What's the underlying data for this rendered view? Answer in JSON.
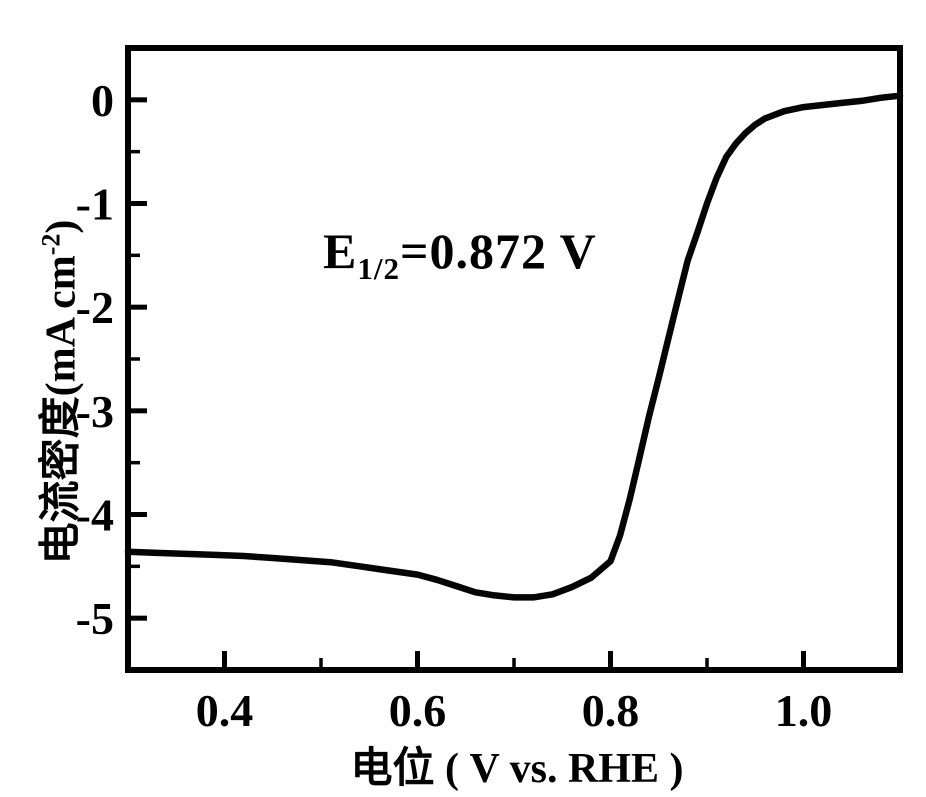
{
  "figure": {
    "background_color": "#ffffff",
    "line_color": "#050505",
    "axis_color": "#000000",
    "annotation": {
      "base": "E",
      "sub": "1/2",
      "rest": "=0.872 V"
    },
    "x_axis": {
      "label": "电位 ( V vs. RHE )",
      "tick_labels": [
        "0.4",
        "0.6",
        "0.8",
        "1.0"
      ],
      "tick_values": [
        0.4,
        0.6,
        0.8,
        1.0
      ],
      "minor_tick_values": [
        0.5,
        0.7,
        0.9
      ]
    },
    "y_axis": {
      "label_prefix": "电流密度(mA cm",
      "label_sup": "-2",
      "label_suffix": ")",
      "tick_labels": [
        "0",
        "-1",
        "-2",
        "-3",
        "-4",
        "-5"
      ],
      "tick_values": [
        0,
        -1,
        -2,
        -3,
        -4,
        -5
      ],
      "minor_tick_values": [
        -0.5,
        -1.5,
        -2.5,
        -3.5,
        -4.5
      ]
    }
  },
  "chart_data": {
    "type": "line",
    "title": "",
    "xlabel": "电位 ( V vs. RHE )",
    "ylabel": "电流密度(mA cm⁻²)",
    "xlim": [
      0.3,
      1.1
    ],
    "ylim": [
      -5.5,
      0.5
    ],
    "grid": false,
    "legend": "none",
    "annotations": [
      "E1/2=0.872 V"
    ],
    "half_wave_potential_V": 0.872,
    "series": [
      {
        "name": "curve",
        "x": [
          0.3,
          0.33,
          0.36,
          0.39,
          0.42,
          0.45,
          0.48,
          0.51,
          0.54,
          0.57,
          0.6,
          0.62,
          0.64,
          0.66,
          0.68,
          0.7,
          0.72,
          0.74,
          0.76,
          0.78,
          0.8,
          0.81,
          0.82,
          0.83,
          0.84,
          0.85,
          0.86,
          0.87,
          0.88,
          0.89,
          0.9,
          0.91,
          0.92,
          0.93,
          0.94,
          0.95,
          0.96,
          0.98,
          1.0,
          1.02,
          1.04,
          1.06,
          1.08,
          1.1
        ],
        "y": [
          -4.36,
          -4.37,
          -4.38,
          -4.39,
          -4.4,
          -4.42,
          -4.44,
          -4.46,
          -4.5,
          -4.54,
          -4.58,
          -4.63,
          -4.69,
          -4.75,
          -4.78,
          -4.8,
          -4.8,
          -4.77,
          -4.7,
          -4.61,
          -4.45,
          -4.2,
          -3.85,
          -3.45,
          -3.05,
          -2.68,
          -2.3,
          -1.92,
          -1.55,
          -1.28,
          -1.0,
          -0.75,
          -0.55,
          -0.42,
          -0.32,
          -0.24,
          -0.18,
          -0.11,
          -0.07,
          -0.05,
          -0.03,
          -0.01,
          0.02,
          0.04
        ]
      }
    ]
  }
}
